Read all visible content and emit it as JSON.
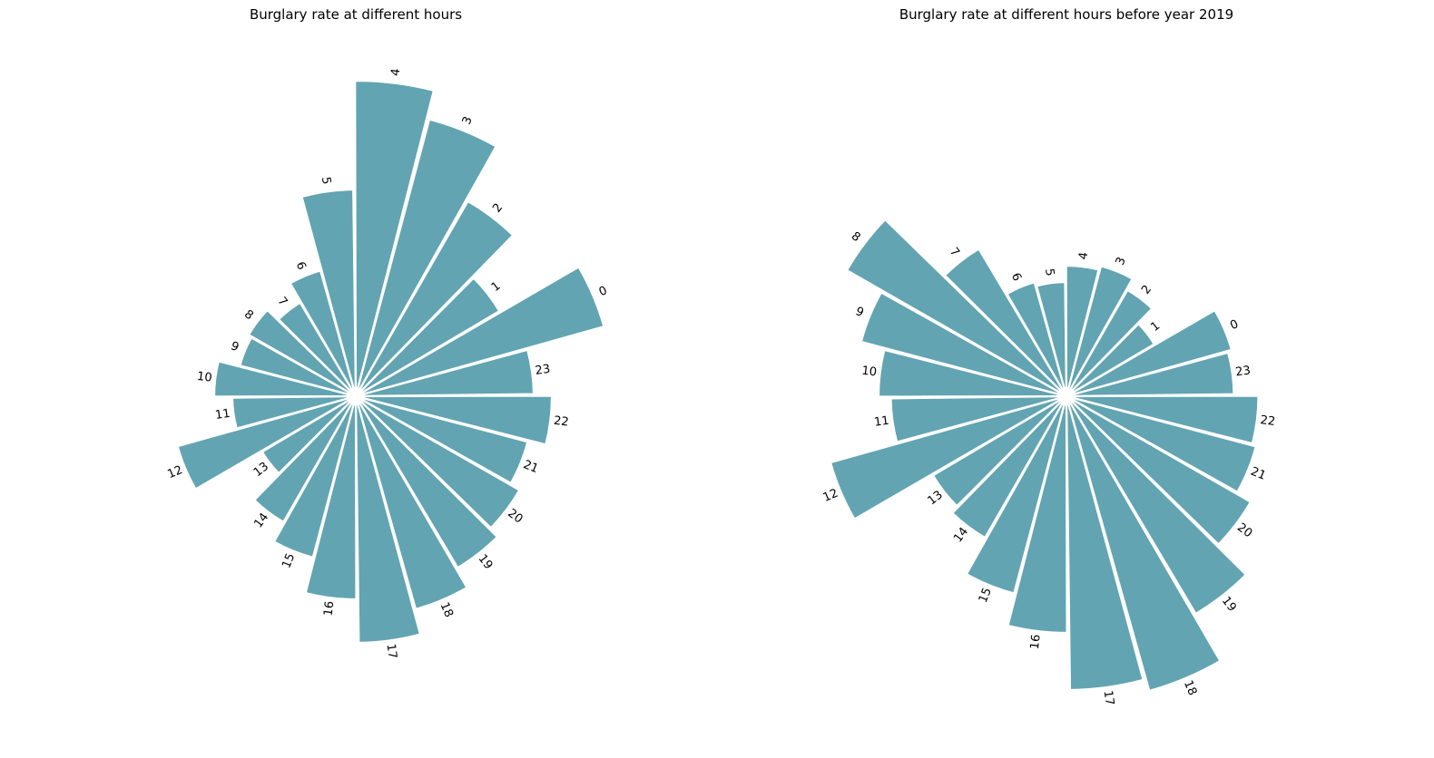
{
  "chart_data": [
    {
      "type": "polar-bar",
      "title": "Burglary rate at different hours",
      "categories": [
        "0",
        "1",
        "2",
        "3",
        "4",
        "5",
        "6",
        "7",
        "8",
        "9",
        "10",
        "11",
        "12",
        "13",
        "14",
        "15",
        "16",
        "17",
        "18",
        "19",
        "20",
        "21",
        "22",
        "23"
      ],
      "values": [
        355,
        230,
        310,
        395,
        435,
        285,
        180,
        150,
        170,
        165,
        195,
        170,
        255,
        150,
        200,
        230,
        280,
        340,
        305,
        275,
        260,
        245,
        270,
        245
      ],
      "bar_color": "#62a4b2"
    },
    {
      "type": "polar-bar",
      "title": "Burglary rate at different hours before year 2019",
      "categories": [
        "0",
        "1",
        "2",
        "3",
        "4",
        "5",
        "6",
        "7",
        "8",
        "9",
        "10",
        "11",
        "12",
        "13",
        "14",
        "15",
        "16",
        "17",
        "18",
        "19",
        "20",
        "21",
        "22",
        "23"
      ],
      "values": [
        210,
        125,
        150,
        165,
        160,
        140,
        145,
        210,
        310,
        260,
        230,
        215,
        300,
        190,
        200,
        250,
        290,
        360,
        375,
        310,
        260,
        240,
        235,
        205
      ],
      "bar_color": "#62a4b2"
    }
  ]
}
